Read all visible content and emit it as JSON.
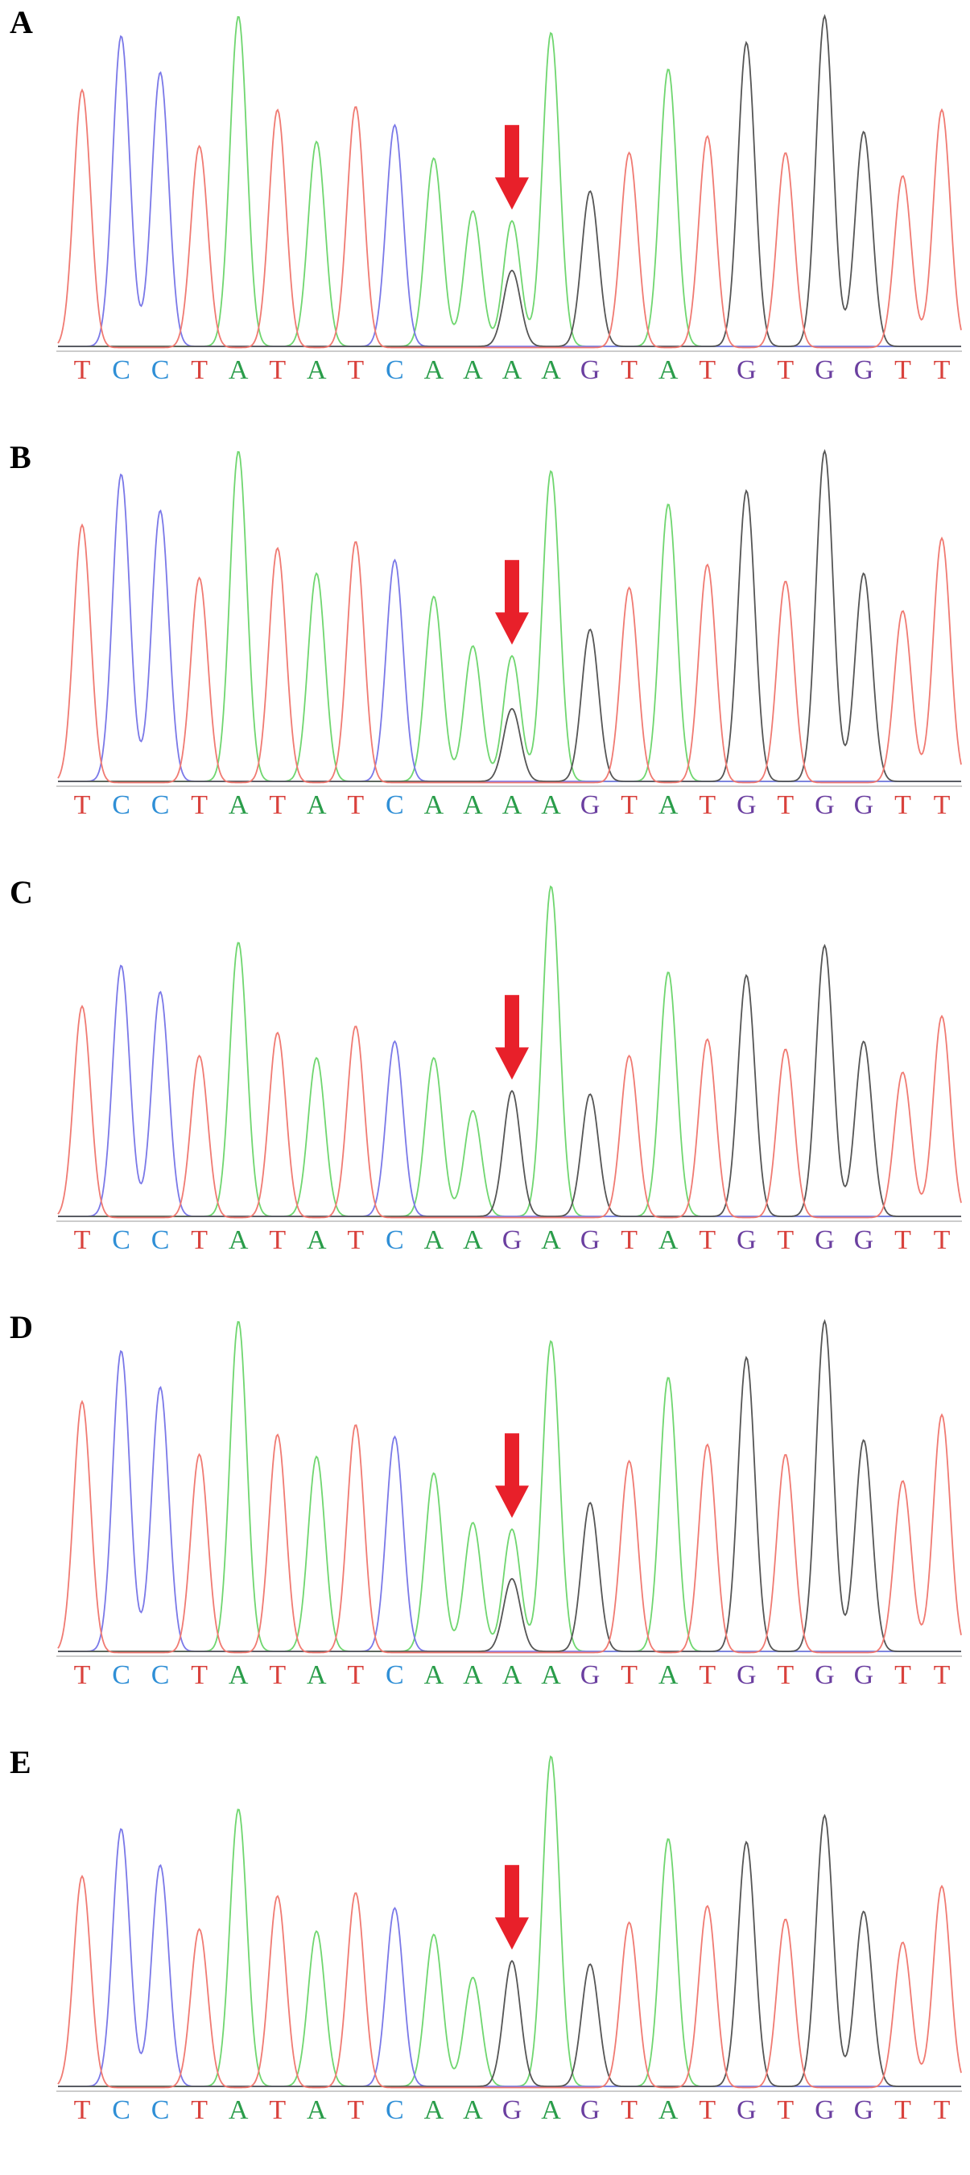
{
  "colors": {
    "A": "#2a9d4a",
    "C": "#2f8fd6",
    "G": "#6b3fa0",
    "T": "#d9423d",
    "trace_A": "#6fd66f",
    "trace_C": "#7a78e8",
    "trace_G": "#555555",
    "trace_T": "#f07a72",
    "arrow": "#e8202a"
  },
  "chart_data": [
    {
      "type": "line",
      "panel": "A",
      "sequence": [
        "T",
        "C",
        "C",
        "T",
        "A",
        "T",
        "A",
        "T",
        "C",
        "A",
        "A",
        "A",
        "A",
        "G",
        "T",
        "A",
        "T",
        "G",
        "T",
        "G",
        "G",
        "T",
        "T"
      ],
      "arrow_index": 11,
      "peaks": [
        {
          "base": "T",
          "h": 0.78
        },
        {
          "base": "C",
          "h": 0.94
        },
        {
          "base": "C",
          "h": 0.83
        },
        {
          "base": "T",
          "h": 0.61
        },
        {
          "base": "A",
          "h": 1.0
        },
        {
          "base": "T",
          "h": 0.72
        },
        {
          "base": "A",
          "h": 0.62
        },
        {
          "base": "T",
          "h": 0.73
        },
        {
          "base": "C",
          "h": 0.67
        },
        {
          "base": "A",
          "h": 0.57
        },
        {
          "base": "A",
          "h": 0.41
        },
        {
          "base": "A",
          "h": 0.38,
          "secondary": {
            "base": "G",
            "h": 0.23
          }
        },
        {
          "base": "A",
          "h": 0.95
        },
        {
          "base": "G",
          "h": 0.47
        },
        {
          "base": "T",
          "h": 0.59
        },
        {
          "base": "A",
          "h": 0.84
        },
        {
          "base": "T",
          "h": 0.64
        },
        {
          "base": "G",
          "h": 0.92
        },
        {
          "base": "T",
          "h": 0.59
        },
        {
          "base": "G",
          "h": 1.0
        },
        {
          "base": "G",
          "h": 0.65
        },
        {
          "base": "T",
          "h": 0.52
        },
        {
          "base": "T",
          "h": 0.72
        }
      ]
    },
    {
      "type": "line",
      "panel": "B",
      "sequence": [
        "T",
        "C",
        "C",
        "T",
        "A",
        "T",
        "A",
        "T",
        "C",
        "A",
        "A",
        "A",
        "A",
        "G",
        "T",
        "A",
        "T",
        "G",
        "T",
        "G",
        "G",
        "T",
        "T"
      ],
      "arrow_index": 11,
      "peaks": [
        {
          "base": "T",
          "h": 0.78
        },
        {
          "base": "C",
          "h": 0.93
        },
        {
          "base": "C",
          "h": 0.82
        },
        {
          "base": "T",
          "h": 0.62
        },
        {
          "base": "A",
          "h": 1.0
        },
        {
          "base": "T",
          "h": 0.71
        },
        {
          "base": "A",
          "h": 0.63
        },
        {
          "base": "T",
          "h": 0.73
        },
        {
          "base": "C",
          "h": 0.67
        },
        {
          "base": "A",
          "h": 0.56
        },
        {
          "base": "A",
          "h": 0.41
        },
        {
          "base": "A",
          "h": 0.38,
          "secondary": {
            "base": "G",
            "h": 0.22
          }
        },
        {
          "base": "A",
          "h": 0.94
        },
        {
          "base": "G",
          "h": 0.46
        },
        {
          "base": "T",
          "h": 0.59
        },
        {
          "base": "A",
          "h": 0.84
        },
        {
          "base": "T",
          "h": 0.66
        },
        {
          "base": "G",
          "h": 0.88
        },
        {
          "base": "T",
          "h": 0.61
        },
        {
          "base": "G",
          "h": 1.0
        },
        {
          "base": "G",
          "h": 0.63
        },
        {
          "base": "T",
          "h": 0.52
        },
        {
          "base": "T",
          "h": 0.74
        }
      ]
    },
    {
      "type": "line",
      "panel": "C",
      "sequence": [
        "T",
        "C",
        "C",
        "T",
        "A",
        "T",
        "A",
        "T",
        "C",
        "A",
        "A",
        "G",
        "A",
        "G",
        "T",
        "A",
        "T",
        "G",
        "T",
        "G",
        "G",
        "T",
        "T"
      ],
      "arrow_index": 11,
      "peaks": [
        {
          "base": "T",
          "h": 0.64
        },
        {
          "base": "C",
          "h": 0.76
        },
        {
          "base": "C",
          "h": 0.68
        },
        {
          "base": "T",
          "h": 0.49
        },
        {
          "base": "A",
          "h": 0.83
        },
        {
          "base": "T",
          "h": 0.56
        },
        {
          "base": "A",
          "h": 0.48
        },
        {
          "base": "T",
          "h": 0.58
        },
        {
          "base": "C",
          "h": 0.53
        },
        {
          "base": "A",
          "h": 0.48
        },
        {
          "base": "A",
          "h": 0.32
        },
        {
          "base": "G",
          "h": 0.38
        },
        {
          "base": "A",
          "h": 1.0
        },
        {
          "base": "G",
          "h": 0.37
        },
        {
          "base": "T",
          "h": 0.49
        },
        {
          "base": "A",
          "h": 0.74
        },
        {
          "base": "T",
          "h": 0.54
        },
        {
          "base": "G",
          "h": 0.73
        },
        {
          "base": "T",
          "h": 0.51
        },
        {
          "base": "G",
          "h": 0.82
        },
        {
          "base": "G",
          "h": 0.53
        },
        {
          "base": "T",
          "h": 0.44
        },
        {
          "base": "T",
          "h": 0.61
        }
      ]
    },
    {
      "type": "line",
      "panel": "D",
      "sequence": [
        "T",
        "C",
        "C",
        "T",
        "A",
        "T",
        "A",
        "T",
        "C",
        "A",
        "A",
        "A",
        "A",
        "G",
        "T",
        "A",
        "T",
        "G",
        "T",
        "G",
        "G",
        "T",
        "T"
      ],
      "arrow_index": 11,
      "peaks": [
        {
          "base": "T",
          "h": 0.76
        },
        {
          "base": "C",
          "h": 0.91
        },
        {
          "base": "C",
          "h": 0.8
        },
        {
          "base": "T",
          "h": 0.6
        },
        {
          "base": "A",
          "h": 1.0
        },
        {
          "base": "T",
          "h": 0.66
        },
        {
          "base": "A",
          "h": 0.59
        },
        {
          "base": "T",
          "h": 0.69
        },
        {
          "base": "C",
          "h": 0.65
        },
        {
          "base": "A",
          "h": 0.54
        },
        {
          "base": "A",
          "h": 0.39
        },
        {
          "base": "A",
          "h": 0.37,
          "secondary": {
            "base": "G",
            "h": 0.22
          }
        },
        {
          "base": "A",
          "h": 0.94
        },
        {
          "base": "G",
          "h": 0.45
        },
        {
          "base": "T",
          "h": 0.58
        },
        {
          "base": "A",
          "h": 0.83
        },
        {
          "base": "T",
          "h": 0.63
        },
        {
          "base": "G",
          "h": 0.89
        },
        {
          "base": "T",
          "h": 0.6
        },
        {
          "base": "G",
          "h": 1.0
        },
        {
          "base": "G",
          "h": 0.64
        },
        {
          "base": "T",
          "h": 0.52
        },
        {
          "base": "T",
          "h": 0.72
        }
      ]
    },
    {
      "type": "line",
      "panel": "E",
      "sequence": [
        "T",
        "C",
        "C",
        "T",
        "A",
        "T",
        "A",
        "T",
        "C",
        "A",
        "A",
        "G",
        "A",
        "G",
        "T",
        "A",
        "T",
        "G",
        "T",
        "G",
        "G",
        "T",
        "T"
      ],
      "arrow_index": 11,
      "peaks": [
        {
          "base": "T",
          "h": 0.64
        },
        {
          "base": "C",
          "h": 0.78
        },
        {
          "base": "C",
          "h": 0.67
        },
        {
          "base": "T",
          "h": 0.48
        },
        {
          "base": "A",
          "h": 0.84
        },
        {
          "base": "T",
          "h": 0.58
        },
        {
          "base": "A",
          "h": 0.47
        },
        {
          "base": "T",
          "h": 0.59
        },
        {
          "base": "C",
          "h": 0.54
        },
        {
          "base": "A",
          "h": 0.46
        },
        {
          "base": "A",
          "h": 0.33
        },
        {
          "base": "G",
          "h": 0.38
        },
        {
          "base": "A",
          "h": 1.0
        },
        {
          "base": "G",
          "h": 0.37
        },
        {
          "base": "T",
          "h": 0.5
        },
        {
          "base": "A",
          "h": 0.75
        },
        {
          "base": "T",
          "h": 0.55
        },
        {
          "base": "G",
          "h": 0.74
        },
        {
          "base": "T",
          "h": 0.51
        },
        {
          "base": "G",
          "h": 0.82
        },
        {
          "base": "G",
          "h": 0.53
        },
        {
          "base": "T",
          "h": 0.44
        },
        {
          "base": "T",
          "h": 0.61
        }
      ]
    }
  ]
}
